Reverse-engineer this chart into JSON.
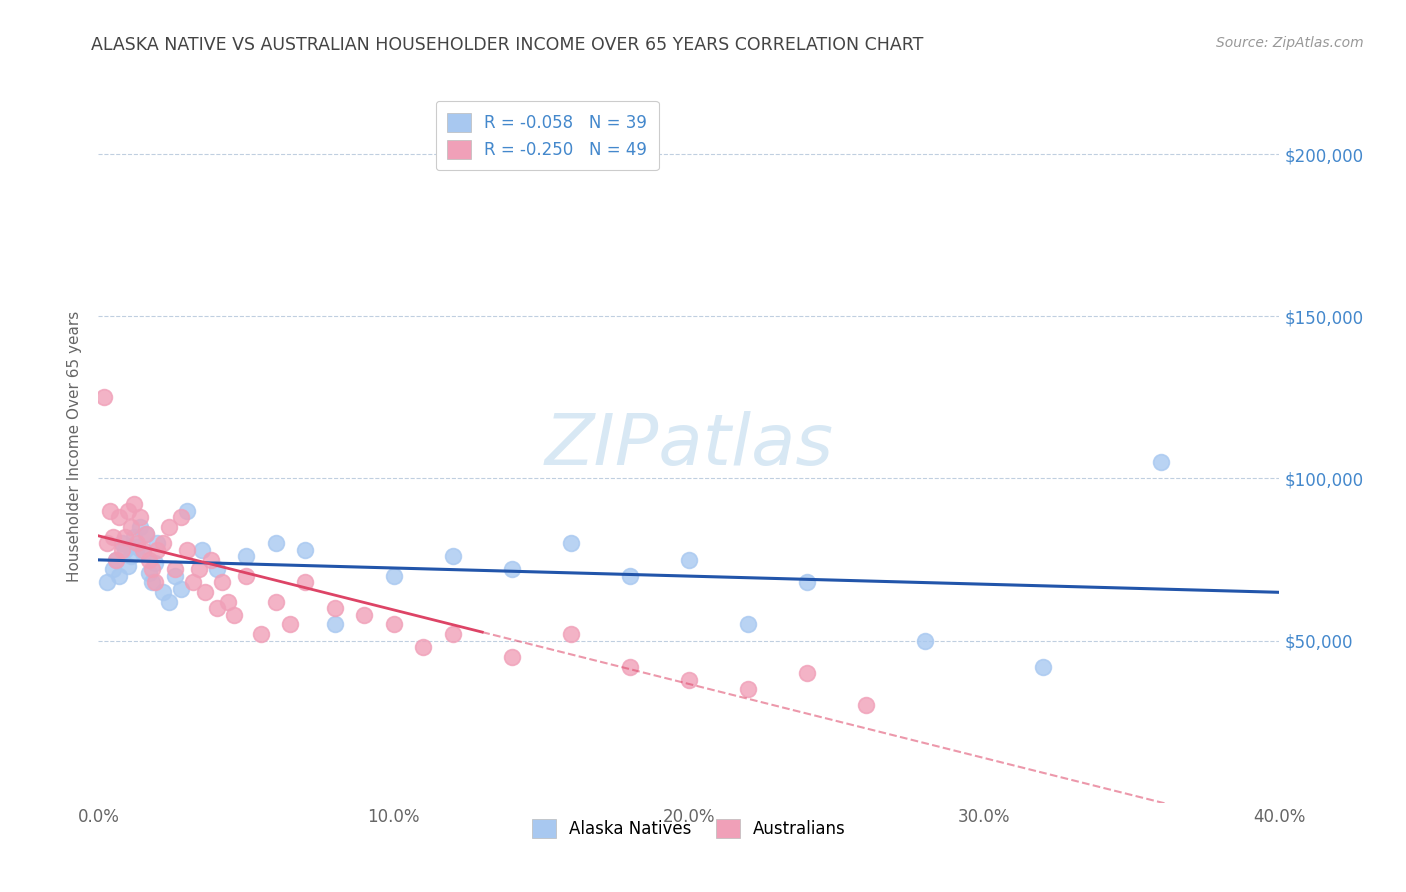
{
  "title": "ALASKA NATIVE VS AUSTRALIAN HOUSEHOLDER INCOME OVER 65 YEARS CORRELATION CHART",
  "source": "Source: ZipAtlas.com",
  "ylabel": "Householder Income Over 65 years",
  "xlim": [
    0.0,
    0.4
  ],
  "ylim": [
    0,
    220000
  ],
  "ytick_labels": [
    "$50,000",
    "$100,000",
    "$150,000",
    "$200,000"
  ],
  "ytick_values": [
    50000,
    100000,
    150000,
    200000
  ],
  "xtick_labels": [
    "0.0%",
    "10.0%",
    "20.0%",
    "30.0%",
    "40.0%"
  ],
  "xtick_values": [
    0.0,
    0.1,
    0.2,
    0.3,
    0.4
  ],
  "blue_color": "#a8c8f0",
  "pink_color": "#f0a0b8",
  "trend_blue_color": "#2255aa",
  "trend_pink_color": "#dd4466",
  "background_color": "#ffffff",
  "grid_color": "#c0cfe0",
  "title_color": "#444444",
  "source_color": "#999999",
  "axis_label_color": "#666666",
  "right_ytick_color": "#4488cc",
  "watermark_color": "#d8e8f4",
  "alaska_x": [
    0.003,
    0.005,
    0.006,
    0.007,
    0.008,
    0.009,
    0.01,
    0.011,
    0.012,
    0.013,
    0.014,
    0.015,
    0.016,
    0.017,
    0.018,
    0.019,
    0.02,
    0.022,
    0.024,
    0.026,
    0.028,
    0.03,
    0.035,
    0.04,
    0.05,
    0.06,
    0.07,
    0.08,
    0.1,
    0.12,
    0.14,
    0.16,
    0.18,
    0.2,
    0.22,
    0.24,
    0.28,
    0.32,
    0.36
  ],
  "alaska_y": [
    68000,
    72000,
    75000,
    70000,
    80000,
    78000,
    73000,
    76000,
    82000,
    79000,
    85000,
    77000,
    83000,
    71000,
    68000,
    74000,
    80000,
    65000,
    62000,
    70000,
    66000,
    90000,
    78000,
    72000,
    76000,
    80000,
    78000,
    55000,
    70000,
    76000,
    72000,
    80000,
    70000,
    75000,
    55000,
    68000,
    50000,
    42000,
    105000
  ],
  "australian_x": [
    0.002,
    0.003,
    0.004,
    0.005,
    0.006,
    0.007,
    0.008,
    0.009,
    0.01,
    0.011,
    0.012,
    0.013,
    0.014,
    0.015,
    0.016,
    0.017,
    0.018,
    0.019,
    0.02,
    0.022,
    0.024,
    0.026,
    0.028,
    0.03,
    0.032,
    0.034,
    0.036,
    0.038,
    0.04,
    0.042,
    0.044,
    0.046,
    0.05,
    0.055,
    0.06,
    0.065,
    0.07,
    0.08,
    0.09,
    0.1,
    0.11,
    0.12,
    0.14,
    0.16,
    0.18,
    0.2,
    0.22,
    0.24,
    0.26
  ],
  "australian_y": [
    125000,
    80000,
    90000,
    82000,
    75000,
    88000,
    78000,
    82000,
    90000,
    85000,
    92000,
    80000,
    88000,
    78000,
    83000,
    75000,
    72000,
    68000,
    78000,
    80000,
    85000,
    72000,
    88000,
    78000,
    68000,
    72000,
    65000,
    75000,
    60000,
    68000,
    62000,
    58000,
    70000,
    52000,
    62000,
    55000,
    68000,
    60000,
    58000,
    55000,
    48000,
    52000,
    45000,
    52000,
    42000,
    38000,
    35000,
    40000,
    30000
  ],
  "legend_r_blue": "R = -0.058",
  "legend_n_blue": "N = 39",
  "legend_r_pink": "R = -0.250",
  "legend_n_pink": "N = 49"
}
